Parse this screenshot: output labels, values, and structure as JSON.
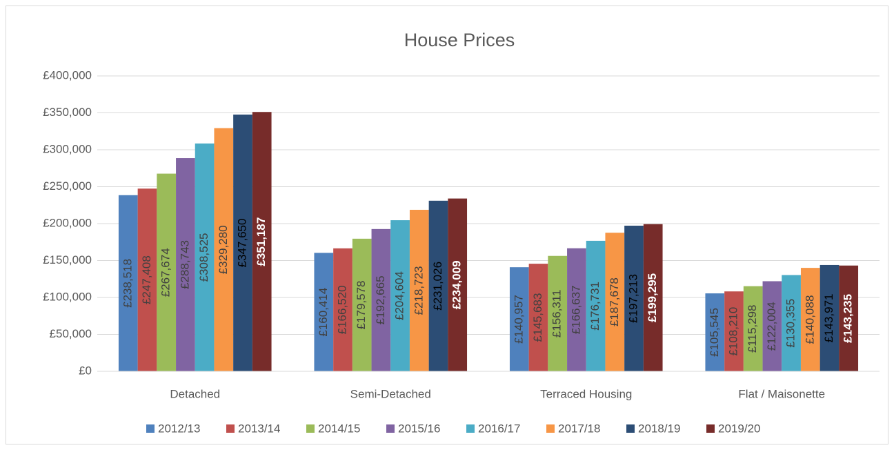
{
  "chart_data": {
    "type": "bar",
    "title": "House Prices",
    "categories": [
      "Detached",
      "Semi-Detached",
      "Terraced Housing",
      "Flat / Maisonette"
    ],
    "series": [
      {
        "name": "2012/13",
        "color": "#4f81bd",
        "label_color": "#404040",
        "label_bold": false,
        "values": [
          238518,
          160414,
          140957,
          105545
        ],
        "value_labels": [
          "£238,518",
          "£160,414",
          "£140,957",
          "£105,545"
        ]
      },
      {
        "name": "2013/14",
        "color": "#c0504d",
        "label_color": "#404040",
        "label_bold": false,
        "values": [
          247408,
          166520,
          145683,
          108210
        ],
        "value_labels": [
          "£247,408",
          "£166,520",
          "£145,683",
          "£108,210"
        ]
      },
      {
        "name": "2014/15",
        "color": "#9bbb59",
        "label_color": "#404040",
        "label_bold": false,
        "values": [
          267674,
          179578,
          156311,
          115298
        ],
        "value_labels": [
          "£267,674",
          "£179,578",
          "£156,311",
          "£115,298"
        ]
      },
      {
        "name": "2015/16",
        "color": "#8064a2",
        "label_color": "#404040",
        "label_bold": false,
        "values": [
          288743,
          192665,
          166637,
          122004
        ],
        "value_labels": [
          "£288,743",
          "£192,665",
          "£166,637",
          "£122,004"
        ]
      },
      {
        "name": "2016/17",
        "color": "#4bacc6",
        "label_color": "#404040",
        "label_bold": false,
        "values": [
          308525,
          204604,
          176731,
          130355
        ],
        "value_labels": [
          "£308,525",
          "£204,604",
          "£176,731",
          "£130,355"
        ]
      },
      {
        "name": "2017/18",
        "color": "#f79646",
        "label_color": "#404040",
        "label_bold": false,
        "values": [
          329280,
          218723,
          187678,
          140088
        ],
        "value_labels": [
          "£329,280",
          "£218,723",
          "£187,678",
          "£140,088"
        ]
      },
      {
        "name": "2018/19",
        "color": "#2c4d75",
        "label_color": "#000000",
        "label_bold": false,
        "values": [
          347650,
          231026,
          197213,
          143971
        ],
        "value_labels": [
          "£347,650",
          "£231,026",
          "£197,213",
          "£143,971"
        ]
      },
      {
        "name": "2019/20",
        "color": "#772c2a",
        "label_color": "#ffffff",
        "label_bold": true,
        "values": [
          351187,
          234009,
          199295,
          143235
        ],
        "value_labels": [
          "£351,187",
          "£234,009",
          "£199,295",
          "£143,235"
        ]
      }
    ],
    "ylim": [
      0,
      400000
    ],
    "yticks": [
      {
        "value": 0,
        "label": "£0"
      },
      {
        "value": 50000,
        "label": "£50,000"
      },
      {
        "value": 100000,
        "label": "£100,000"
      },
      {
        "value": 150000,
        "label": "£150,000"
      },
      {
        "value": 200000,
        "label": "£200,000"
      },
      {
        "value": 250000,
        "label": "£250,000"
      },
      {
        "value": 300000,
        "label": "£300,000"
      },
      {
        "value": 350000,
        "label": "£350,000"
      },
      {
        "value": 400000,
        "label": "£400,000"
      }
    ],
    "grid": true,
    "legend": "bottom"
  }
}
